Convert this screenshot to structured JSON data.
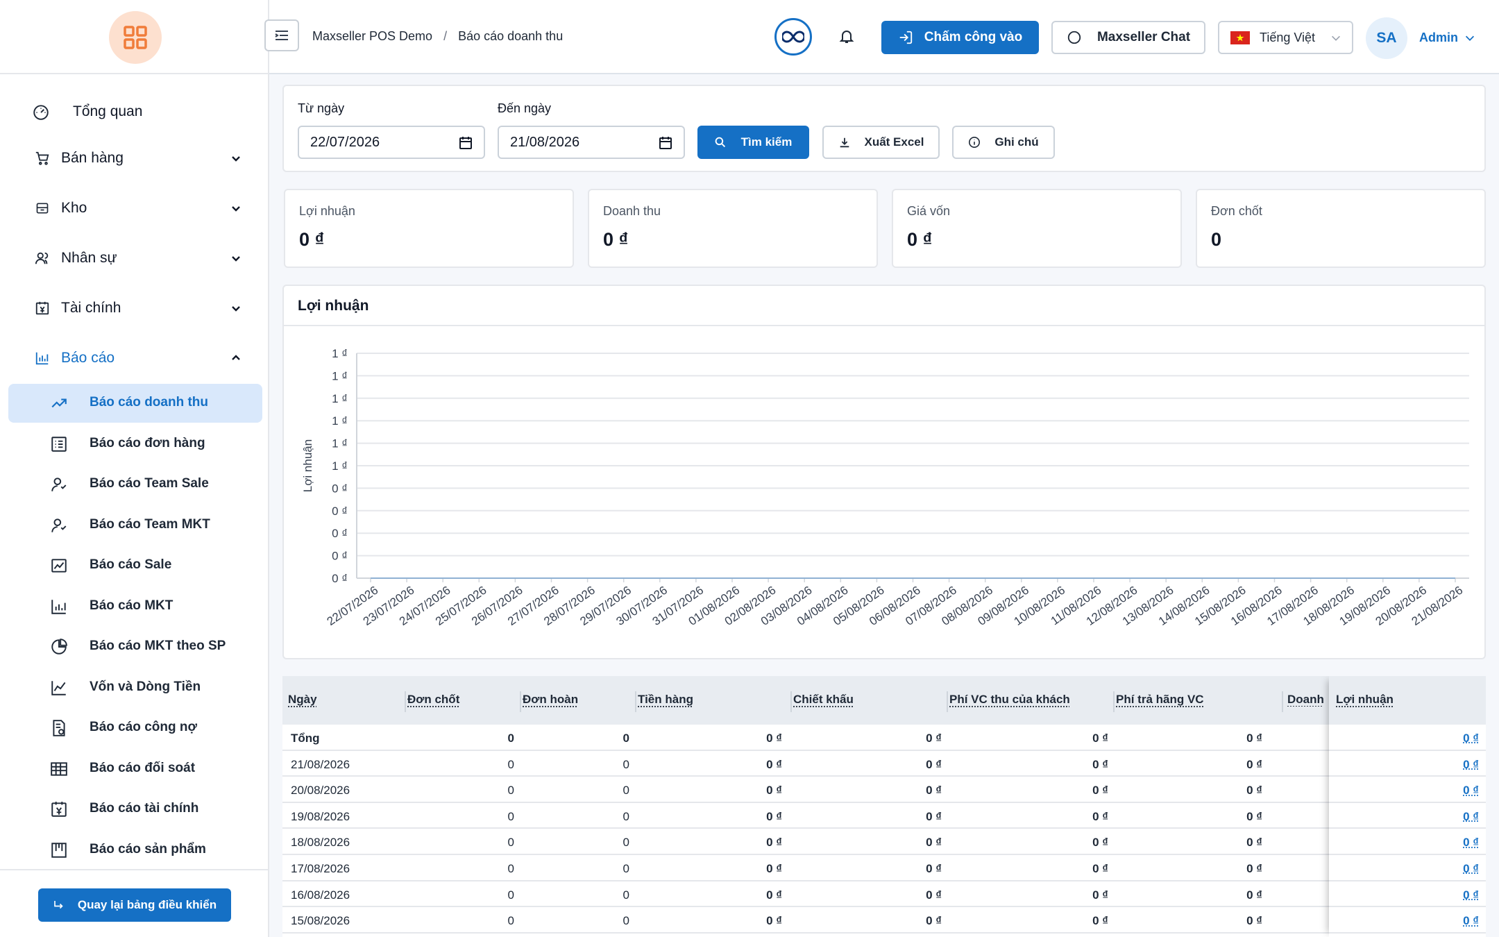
{
  "sidebar": {
    "items": [
      {
        "label": "Tổng quan",
        "icon": "dashboard-icon",
        "expandable": false
      },
      {
        "label": "Bán hàng",
        "icon": "cart-icon",
        "expandable": true
      },
      {
        "label": "Kho",
        "icon": "box-icon",
        "expandable": true
      },
      {
        "label": "Nhân sự",
        "icon": "users-icon",
        "expandable": true
      },
      {
        "label": "Tài chính",
        "icon": "finance-icon",
        "expandable": true
      },
      {
        "label": "Báo cáo",
        "icon": "bar-chart-icon",
        "expandable": true,
        "open": true
      }
    ],
    "reports": [
      {
        "label": "Báo cáo doanh thu",
        "icon": "trending-up-icon",
        "active": true
      },
      {
        "label": "Báo cáo đơn hàng",
        "icon": "list-icon"
      },
      {
        "label": "Báo cáo Team Sale",
        "icon": "team-icon"
      },
      {
        "label": "Báo cáo Team MKT",
        "icon": "team-icon"
      },
      {
        "label": "Báo cáo Sale",
        "icon": "line-chart-icon"
      },
      {
        "label": "Báo cáo MKT",
        "icon": "bar-chart-icon"
      },
      {
        "label": "Báo cáo MKT theo SP",
        "icon": "pie-chart-icon"
      },
      {
        "label": "Vốn và Dòng Tiền",
        "icon": "line-chart-icon"
      },
      {
        "label": "Báo cáo công nợ",
        "icon": "document-icon"
      },
      {
        "label": "Báo cáo đối soát",
        "icon": "table-icon"
      },
      {
        "label": "Báo cáo tài chính",
        "icon": "finance-icon"
      },
      {
        "label": "Báo cáo sản phẩm",
        "icon": "product-icon"
      }
    ],
    "back_label": "Quay lại bảng điều khiển"
  },
  "header": {
    "breadcrumb": [
      "Maxseller POS Demo",
      "/",
      "Báo cáo doanh thu"
    ],
    "checkin_label": "Chấm công vào",
    "chat_label": "Maxseller Chat",
    "language": "Tiếng Việt",
    "avatar": "SA",
    "user": "Admin"
  },
  "filters": {
    "from_label": "Từ ngày",
    "from_value": "22/07/2026",
    "to_label": "Đến ngày",
    "to_value": "21/08/2026",
    "search_label": "Tìm kiếm",
    "export_label": "Xuất Excel",
    "note_label": "Ghi chú"
  },
  "stats": [
    {
      "label": "Lợi nhuận",
      "value": "0 ₫"
    },
    {
      "label": "Doanh thu",
      "value": "0 ₫"
    },
    {
      "label": "Giá vốn",
      "value": "0 ₫"
    },
    {
      "label": "Đơn chốt",
      "value": "0"
    }
  ],
  "chart_data": {
    "type": "line",
    "title": "Lợi nhuận",
    "ylabel": "Lợi nhuận",
    "xlabel": "",
    "y_ticks": [
      "1 ₫",
      "1 ₫",
      "1 ₫",
      "1 ₫",
      "1 ₫",
      "1 ₫",
      "0 ₫",
      "0 ₫",
      "0 ₫",
      "0 ₫",
      "0 ₫"
    ],
    "ylim": [
      0,
      1
    ],
    "grid": true,
    "categories": [
      "22/07/2026",
      "23/07/2026",
      "24/07/2026",
      "25/07/2026",
      "26/07/2026",
      "27/07/2026",
      "28/07/2026",
      "29/07/2026",
      "30/07/2026",
      "31/07/2026",
      "01/08/2026",
      "02/08/2026",
      "03/08/2026",
      "04/08/2026",
      "05/08/2026",
      "06/08/2026",
      "07/08/2026",
      "08/08/2026",
      "09/08/2026",
      "10/08/2026",
      "11/08/2026",
      "12/08/2026",
      "13/08/2026",
      "14/08/2026",
      "15/08/2026",
      "16/08/2026",
      "17/08/2026",
      "18/08/2026",
      "19/08/2026",
      "20/08/2026",
      "21/08/2026"
    ],
    "series": [
      {
        "values": [
          0,
          0,
          0,
          0,
          0,
          0,
          0,
          0,
          0,
          0,
          0,
          0,
          0,
          0,
          0,
          0,
          0,
          0,
          0,
          0,
          0,
          0,
          0,
          0,
          0,
          0,
          0,
          0,
          0,
          0,
          0
        ]
      }
    ]
  },
  "table": {
    "columns": [
      "Ngày",
      "Đơn chốt",
      "Đơn hoàn",
      "Tiền hàng",
      "Chiết khấu",
      "Phí VC thu của khách",
      "Phí trả hãng VC",
      "Doanh",
      "Lợi nhuận"
    ],
    "rows": [
      [
        "Tổng",
        "0",
        "0",
        "0 ₫",
        "0 ₫",
        "0 ₫",
        "0 ₫",
        "",
        "0 ₫"
      ],
      [
        "21/08/2026",
        "0",
        "0",
        "0 ₫",
        "0 ₫",
        "0 ₫",
        "0 ₫",
        "",
        "0 ₫"
      ],
      [
        "20/08/2026",
        "0",
        "0",
        "0 ₫",
        "0 ₫",
        "0 ₫",
        "0 ₫",
        "",
        "0 ₫"
      ],
      [
        "19/08/2026",
        "0",
        "0",
        "0 ₫",
        "0 ₫",
        "0 ₫",
        "0 ₫",
        "",
        "0 ₫"
      ],
      [
        "18/08/2026",
        "0",
        "0",
        "0 ₫",
        "0 ₫",
        "0 ₫",
        "0 ₫",
        "",
        "0 ₫"
      ],
      [
        "17/08/2026",
        "0",
        "0",
        "0 ₫",
        "0 ₫",
        "0 ₫",
        "0 ₫",
        "",
        "0 ₫"
      ],
      [
        "16/08/2026",
        "0",
        "0",
        "0 ₫",
        "0 ₫",
        "0 ₫",
        "0 ₫",
        "",
        "0 ₫"
      ],
      [
        "15/08/2026",
        "0",
        "0",
        "0 ₫",
        "0 ₫",
        "0 ₫",
        "0 ₫",
        "",
        "0 ₫"
      ]
    ]
  },
  "colors": {
    "accent": "#1570c5",
    "active_bg": "#d9e8fb",
    "logo_bg": "#fde0cf",
    "logo_fg": "#f07c3a"
  }
}
